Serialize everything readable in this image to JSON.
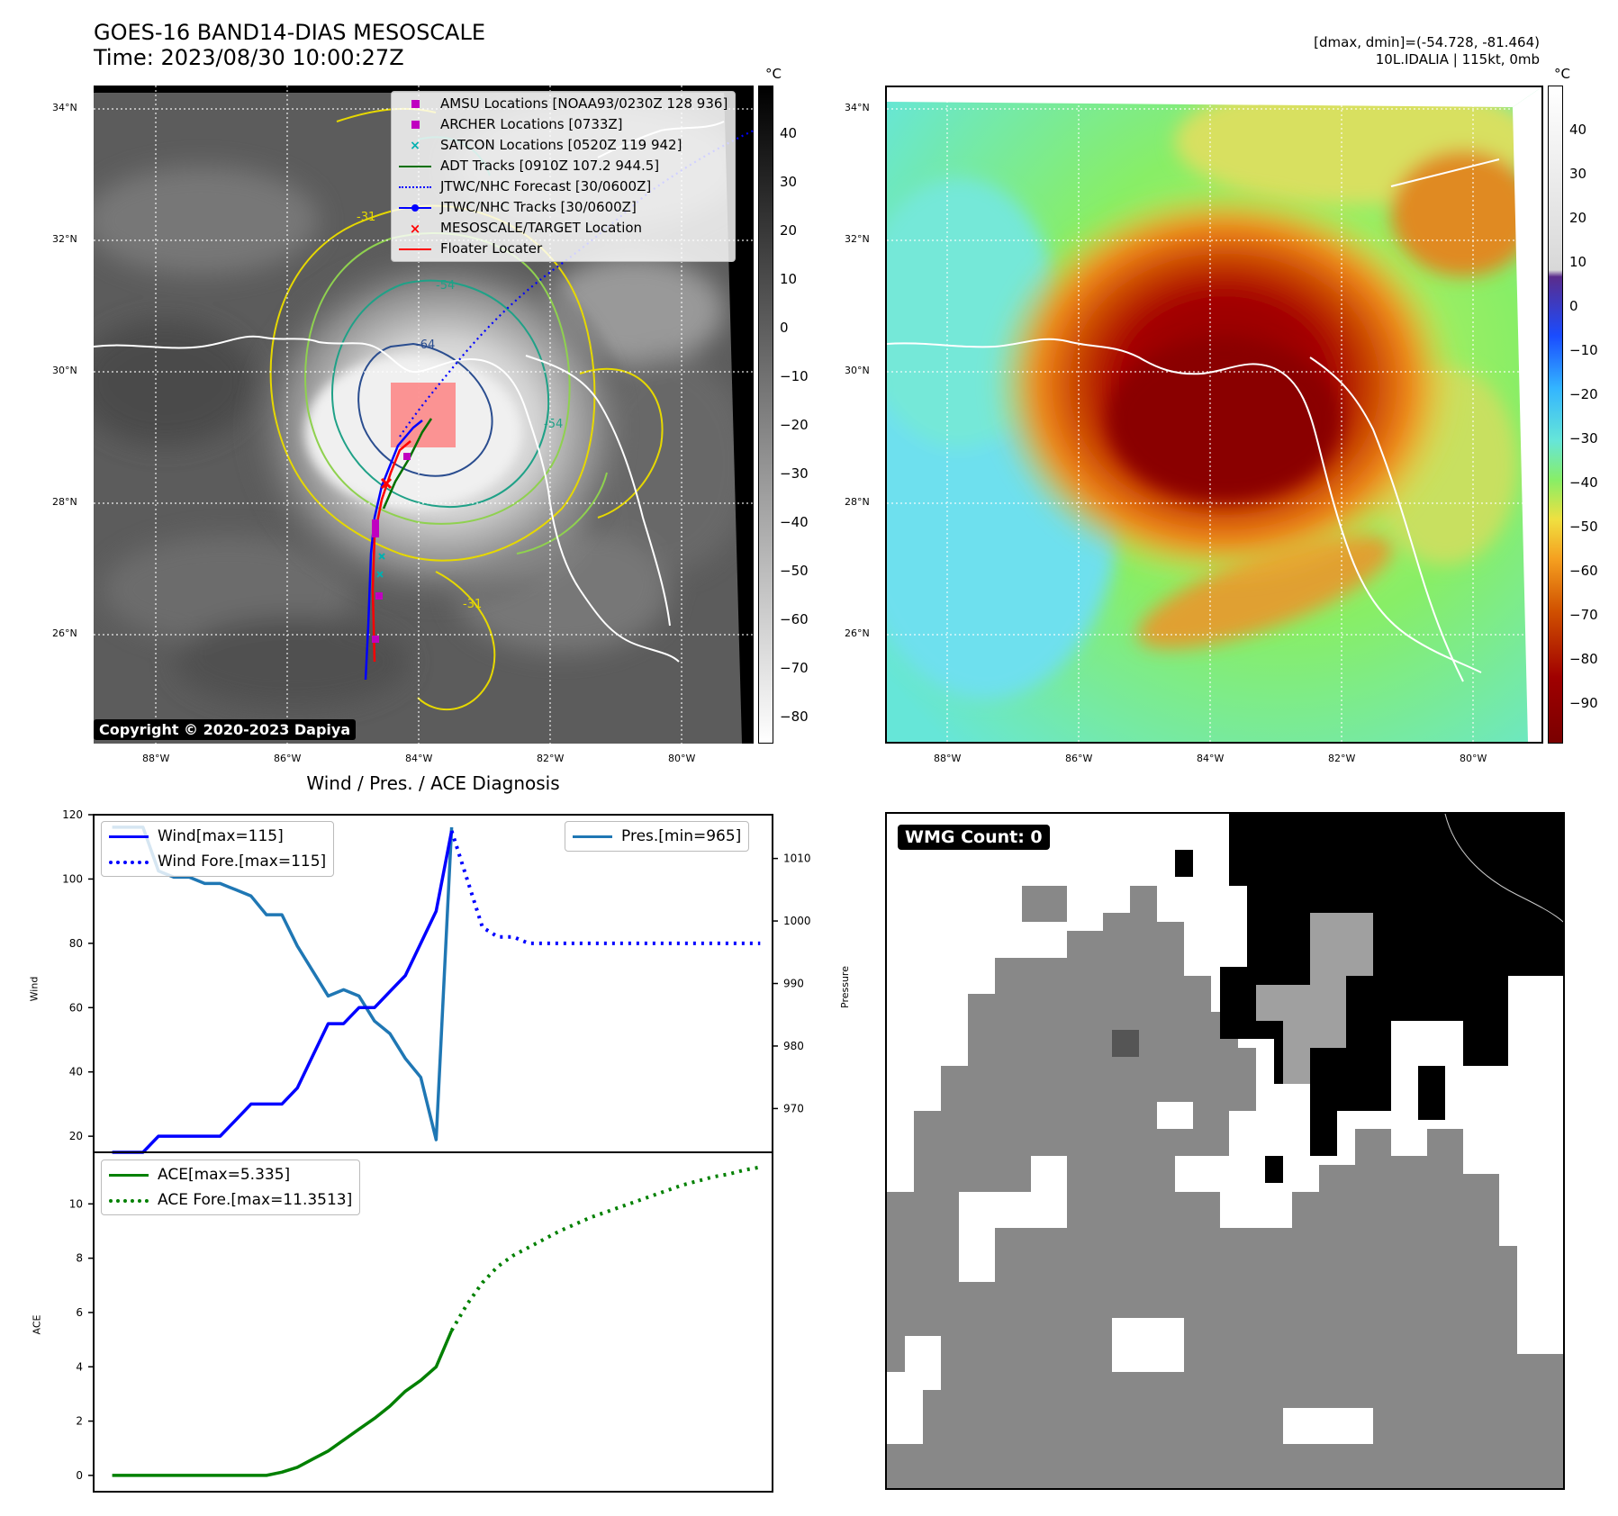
{
  "left_map": {
    "title_line1": "GOES-16 BAND14-DIAS MESOSCALE",
    "title_line2": "Time: 2023/08/30 10:00:27Z",
    "lat_ticks": [
      "34°N",
      "32°N",
      "30°N",
      "28°N",
      "26°N"
    ],
    "lon_ticks": [
      "88°W",
      "86°W",
      "84°W",
      "82°W",
      "80°W"
    ],
    "colorbar_unit": "°C",
    "colorbar_ticks": [
      "40",
      "30",
      "20",
      "10",
      "0",
      "−10",
      "−20",
      "−30",
      "−40",
      "−50",
      "−60",
      "−70",
      "−80"
    ],
    "contour_labels": [
      "-31",
      "-54",
      "-64",
      "-54",
      "-31"
    ],
    "copyright": "Copyright © 2020-2023 Dapiya",
    "legend": [
      {
        "label": "AMSU Locations [NOAA93/0230Z 128 936]",
        "color": "#c000c0",
        "marker": "square"
      },
      {
        "label": "ARCHER Locations [0733Z]",
        "color": "#c000c0",
        "marker": "square"
      },
      {
        "label": "SATCON Locations [0520Z 119 942]",
        "color": "#00b0b0",
        "marker": "x"
      },
      {
        "label": "ADT Tracks [0910Z 107.2 944.5]",
        "color": "#007000",
        "marker": "line"
      },
      {
        "label": "JTWC/NHC Forecast [30/0600Z]",
        "color": "#0000ff",
        "marker": "dotted"
      },
      {
        "label": "JTWC/NHC Tracks [30/0600Z]",
        "color": "#0000ff",
        "marker": "line-dot"
      },
      {
        "label": "MESOSCALE/TARGET Location",
        "color": "#ff0000",
        "marker": "x"
      },
      {
        "label": "Floater Locater",
        "color": "#ff0000",
        "marker": "line"
      }
    ]
  },
  "right_map": {
    "info_line1": "[dmax, dmin]=(-54.728, -81.464)",
    "info_line2": "10L.IDALIA | 115kt, 0mb",
    "lat_ticks": [
      "34°N",
      "32°N",
      "30°N",
      "28°N",
      "26°N"
    ],
    "lon_ticks": [
      "88°W",
      "86°W",
      "84°W",
      "82°W",
      "80°W"
    ],
    "colorbar_unit": "°C",
    "colorbar_ticks": [
      "40",
      "30",
      "20",
      "10",
      "0",
      "−10",
      "−20",
      "−30",
      "−40",
      "−50",
      "−60",
      "−70",
      "−80",
      "−90"
    ]
  },
  "wmg_panel": {
    "badge": "WMG Count: 0"
  },
  "chart_data": [
    {
      "type": "line",
      "title": "Wind / Pres. / ACE Diagnosis",
      "ylabel": "Wind",
      "ylim": [
        15,
        120
      ],
      "yticks": [
        20,
        40,
        60,
        80,
        100,
        120
      ],
      "series": [
        {
          "name": "Wind[max=115]",
          "style": "solid",
          "color": "#0000ff",
          "x": [
            0,
            1,
            2,
            3,
            4,
            5,
            6,
            7,
            8,
            9,
            10,
            11,
            12,
            13,
            14,
            15,
            16,
            17,
            18,
            19,
            20,
            21,
            22
          ],
          "values": [
            15,
            15,
            15,
            20,
            20,
            20,
            20,
            20,
            25,
            30,
            30,
            30,
            35,
            45,
            55,
            55,
            60,
            60,
            65,
            70,
            80,
            90,
            115
          ]
        },
        {
          "name": "Wind Fore.[max=115]",
          "style": "dotted",
          "color": "#0000ff",
          "x": [
            22,
            23,
            24,
            25,
            26,
            27,
            28,
            29,
            30,
            31,
            32,
            33,
            34,
            35,
            36,
            37,
            38,
            39,
            40,
            41,
            42
          ],
          "values": [
            115,
            100,
            85,
            82,
            82,
            80,
            80,
            80,
            80,
            80,
            80,
            80,
            80,
            80,
            80,
            80,
            80,
            80,
            80,
            80,
            80
          ]
        }
      ]
    },
    {
      "type": "line",
      "ylabel": "Pressure",
      "ylim": [
        963,
        1017
      ],
      "yticks": [
        970,
        980,
        990,
        1000,
        1010
      ],
      "series": [
        {
          "name": "Pres.[min=965]",
          "style": "solid",
          "color": "#1f77b4",
          "x": [
            0,
            1,
            2,
            3,
            4,
            5,
            6,
            7,
            8,
            9,
            10,
            11,
            12,
            13,
            14,
            15,
            16,
            17,
            18,
            19,
            20,
            21,
            22
          ],
          "values": [
            1015,
            1015,
            1015,
            1008,
            1007,
            1007,
            1006,
            1006,
            1005,
            1004,
            1001,
            1001,
            996,
            992,
            988,
            989,
            988,
            984,
            982,
            978,
            975,
            965,
            1015
          ]
        }
      ]
    },
    {
      "type": "line",
      "ylabel": "ACE",
      "ylim": [
        -0.6,
        11.9
      ],
      "yticks": [
        0,
        2,
        4,
        6,
        8,
        10
      ],
      "series": [
        {
          "name": "ACE[max=5.335]",
          "style": "solid",
          "color": "#008000",
          "x": [
            0,
            1,
            2,
            3,
            4,
            5,
            6,
            7,
            8,
            9,
            10,
            11,
            12,
            13,
            14,
            15,
            16,
            17,
            18,
            19,
            20,
            21,
            22
          ],
          "values": [
            0,
            0,
            0,
            0,
            0,
            0,
            0,
            0,
            0,
            0,
            0,
            0.12,
            0.3,
            0.6,
            0.9,
            1.3,
            1.7,
            2.1,
            2.55,
            3.1,
            3.5,
            4.0,
            5.335
          ]
        },
        {
          "name": "ACE Fore.[max=11.3513]",
          "style": "dotted",
          "color": "#008000",
          "x": [
            22,
            23,
            24,
            25,
            26,
            27,
            28,
            29,
            30,
            31,
            32,
            33,
            34,
            35,
            36,
            37,
            38,
            39,
            40,
            41,
            42
          ],
          "values": [
            5.335,
            6.3,
            7.1,
            7.7,
            8.1,
            8.4,
            8.7,
            9.0,
            9.25,
            9.5,
            9.7,
            9.9,
            10.1,
            10.3,
            10.5,
            10.7,
            10.85,
            11.0,
            11.1,
            11.25,
            11.3513
          ]
        }
      ]
    }
  ]
}
